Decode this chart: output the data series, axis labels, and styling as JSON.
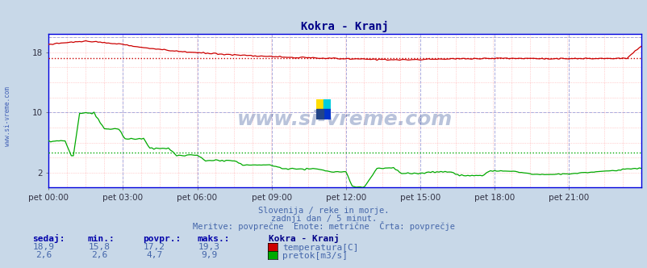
{
  "title": "Kokra - Kranj",
  "bg_color": "#c8d8e8",
  "plot_bg_color": "#ffffff",
  "x_labels": [
    "pet 00:00",
    "pet 03:00",
    "pet 06:00",
    "pet 09:00",
    "pet 12:00",
    "pet 15:00",
    "pet 18:00",
    "pet 21:00"
  ],
  "x_ticks_idx": [
    0,
    36,
    72,
    108,
    144,
    180,
    216,
    252
  ],
  "total_points": 288,
  "y_lim": [
    0,
    20.5
  ],
  "ytick_positions": [
    2,
    10,
    18
  ],
  "ytick_labels": [
    "2",
    "10",
    "18"
  ],
  "temp_color": "#cc0000",
  "flow_color": "#00aa00",
  "temp_avg": 17.2,
  "flow_avg": 4.7,
  "subtitle1": "Slovenija / reke in morje.",
  "subtitle2": "zadnji dan / 5 minut.",
  "subtitle3": "Meritve: povprečne  Enote: metrične  Črta: povprečje",
  "legend_title": "Kokra - Kranj",
  "col_headers": [
    "sedaj:",
    "min.:",
    "povpr.:",
    "maks.:"
  ],
  "temp_stats": [
    "18,9",
    "15,8",
    "17,2",
    "19,3"
  ],
  "flow_stats": [
    "2,6",
    "2,6",
    "4,7",
    "9,9"
  ],
  "temp_label": "temperatura[C]",
  "flow_label": "pretok[m3/s]",
  "watermark": "www.si-vreme.com",
  "left_label": "www.si-vreme.com",
  "axis_color": "#0000dd",
  "minor_grid_color": "#ffaaaa",
  "major_grid_color": "#aaaadd",
  "text_color": "#4466aa",
  "header_color": "#0000aa"
}
